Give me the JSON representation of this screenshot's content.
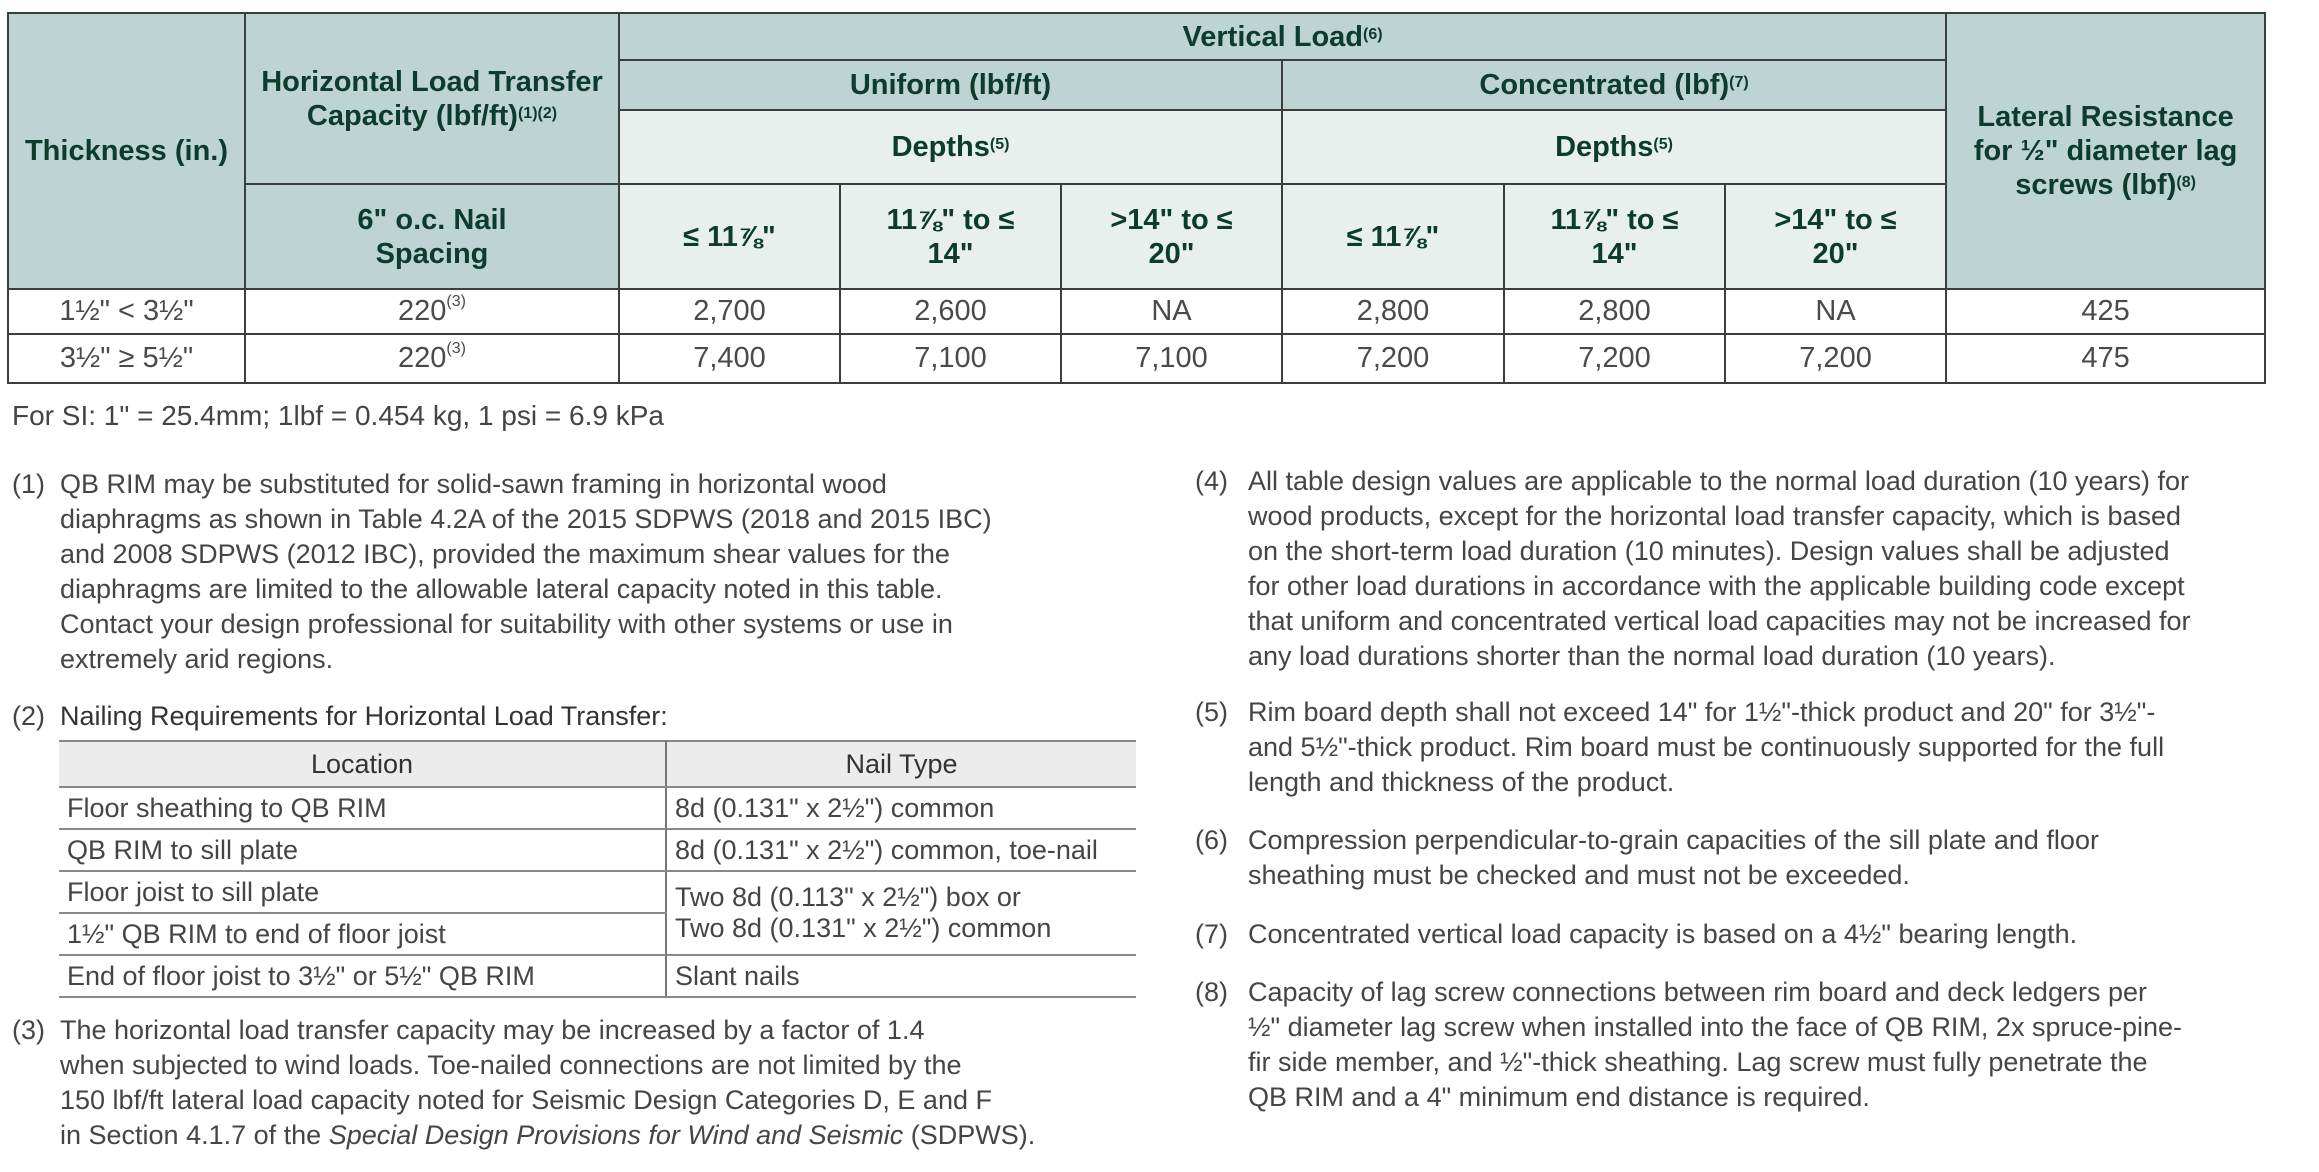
{
  "main_table": {
    "headers": {
      "thickness": "Thickness (in.)",
      "horizontal": "Horizontal Load Transfer Capacity (lbf/ft)",
      "horizontal_sup": "(1)(2)",
      "nail_spacing": "6\" o.c. Nail Spacing",
      "vertical": "Vertical Load",
      "vertical_sup": "(6)",
      "uniform": "Uniform (lbf/ft)",
      "concentrated": "Concentrated (lbf)",
      "concentrated_sup": "(7)",
      "depths": "Depths",
      "depths_sup": "(5)",
      "depth_cols": [
        "≤ 11⅞\"",
        "11⅞\" to ≤ 14\"",
        ">14\" to ≤ 20\"",
        "≤ 11⅞\"",
        "11⅞\" to ≤ 14\"",
        ">14\" to ≤ 20\""
      ],
      "lateral": "Lateral Resistance for ½\" diameter lag screws (lbf)",
      "lateral_sup": "(8)"
    },
    "rows": [
      {
        "thickness": "1½\" < 3½\"",
        "horizontal": "220",
        "horizontal_sup": "(3)",
        "values": [
          "2,700",
          "2,600",
          "NA",
          "2,800",
          "2,800",
          "NA"
        ],
        "lateral": "425"
      },
      {
        "thickness": "3½\" ≥ 5½\"",
        "horizontal": "220",
        "horizontal_sup": "(3)",
        "values": [
          "7,400",
          "7,100",
          "7,100",
          "7,200",
          "7,200",
          "7,200"
        ],
        "lateral": "475"
      }
    ]
  },
  "si_note": "For SI: 1\" = 25.4mm; 1lbf = 0.454 kg, 1 psi = 6.9 kPa",
  "notes": {
    "n1": {
      "num": "(1)",
      "lines": [
        "QB RIM may be substituted for solid-sawn framing in horizontal wood",
        "diaphragms as shown in Table 4.2A of the 2015 SDPWS (2018 and 2015 IBC)",
        "and 2008 SDPWS (2012 IBC), provided the maximum shear values for the",
        "diaphragms are limited to the allowable lateral capacity noted in this table.",
        "Contact your design professional for suitability with other systems or use in",
        "extremely arid regions."
      ]
    },
    "n2": {
      "num": "(2)",
      "title": "Nailing Requirements for Horizontal Load Transfer:"
    },
    "n3": {
      "num": "(3)",
      "lines": [
        "The horizontal load transfer capacity may be increased by a factor of 1.4",
        "when subjected to wind loads. Toe-nailed connections are not limited by the",
        "150 lbf/ft lateral load capacity noted for Seismic Design Categories D, E and F"
      ],
      "last_pre": "in Section 4.1.7 of the ",
      "last_italic": "Special Design Provisions for Wind and Seismic",
      "last_post": " (SDPWS)."
    },
    "n4": {
      "num": "(4)",
      "lines": [
        "All table design values are applicable to the normal load duration (10 years) for",
        "wood products, except for the horizontal load transfer capacity, which is based",
        "on the short-term load duration (10 minutes). Design values shall be adjusted",
        "for other load durations in accordance with the applicable building code except",
        "that uniform and concentrated vertical load capacities may not be increased for",
        "any load durations shorter than the normal load duration (10 years)."
      ]
    },
    "n5": {
      "num": "(5)",
      "lines": [
        "Rim board depth shall not exceed 14\" for 1½\"-thick product and 20\" for 3½\"-",
        "and 5½\"-thick product. Rim board must be continuously supported for the full",
        "length and thickness of the product."
      ]
    },
    "n6": {
      "num": "(6)",
      "lines": [
        "Compression perpendicular-to-grain capacities of the sill plate and floor",
        "sheathing must be checked and must not be exceeded."
      ]
    },
    "n7": {
      "num": "(7)",
      "lines": [
        "Concentrated vertical load capacity is based on a 4½\" bearing length."
      ]
    },
    "n8": {
      "num": "(8)",
      "lines": [
        "Capacity of lag screw connections between rim board and deck ledgers per",
        "½\" diameter lag screw when installed into the face of QB RIM, 2x spruce-pine-",
        "fir side member, and ½\"-thick sheathing. Lag screw must fully penetrate the",
        "QB RIM and a 4\" minimum end distance is required."
      ]
    }
  },
  "nail_table": {
    "headers": [
      "Location",
      "Nail Type"
    ],
    "rows": [
      [
        "Floor sheathing to QB RIM",
        "8d (0.131\" x 2½\") common"
      ],
      [
        "QB RIM to sill plate",
        "8d (0.131\" x 2½\") common, toe-nail"
      ],
      [
        "Floor joist to sill plate",
        "Two 8d (0.113\" x 2½\") box or"
      ],
      [
        "1½\" QB RIM to end of floor joist",
        "Two 8d (0.131\" x 2½\") common"
      ],
      [
        "End of floor joist to 3½\" or 5½\" QB RIM",
        "Slant nails"
      ]
    ]
  },
  "colors": {
    "header_bg": "#bed4d2",
    "header_light_bg": "#e8f0ee",
    "header_text": "#0d3b2c",
    "body_text": "#454545"
  }
}
